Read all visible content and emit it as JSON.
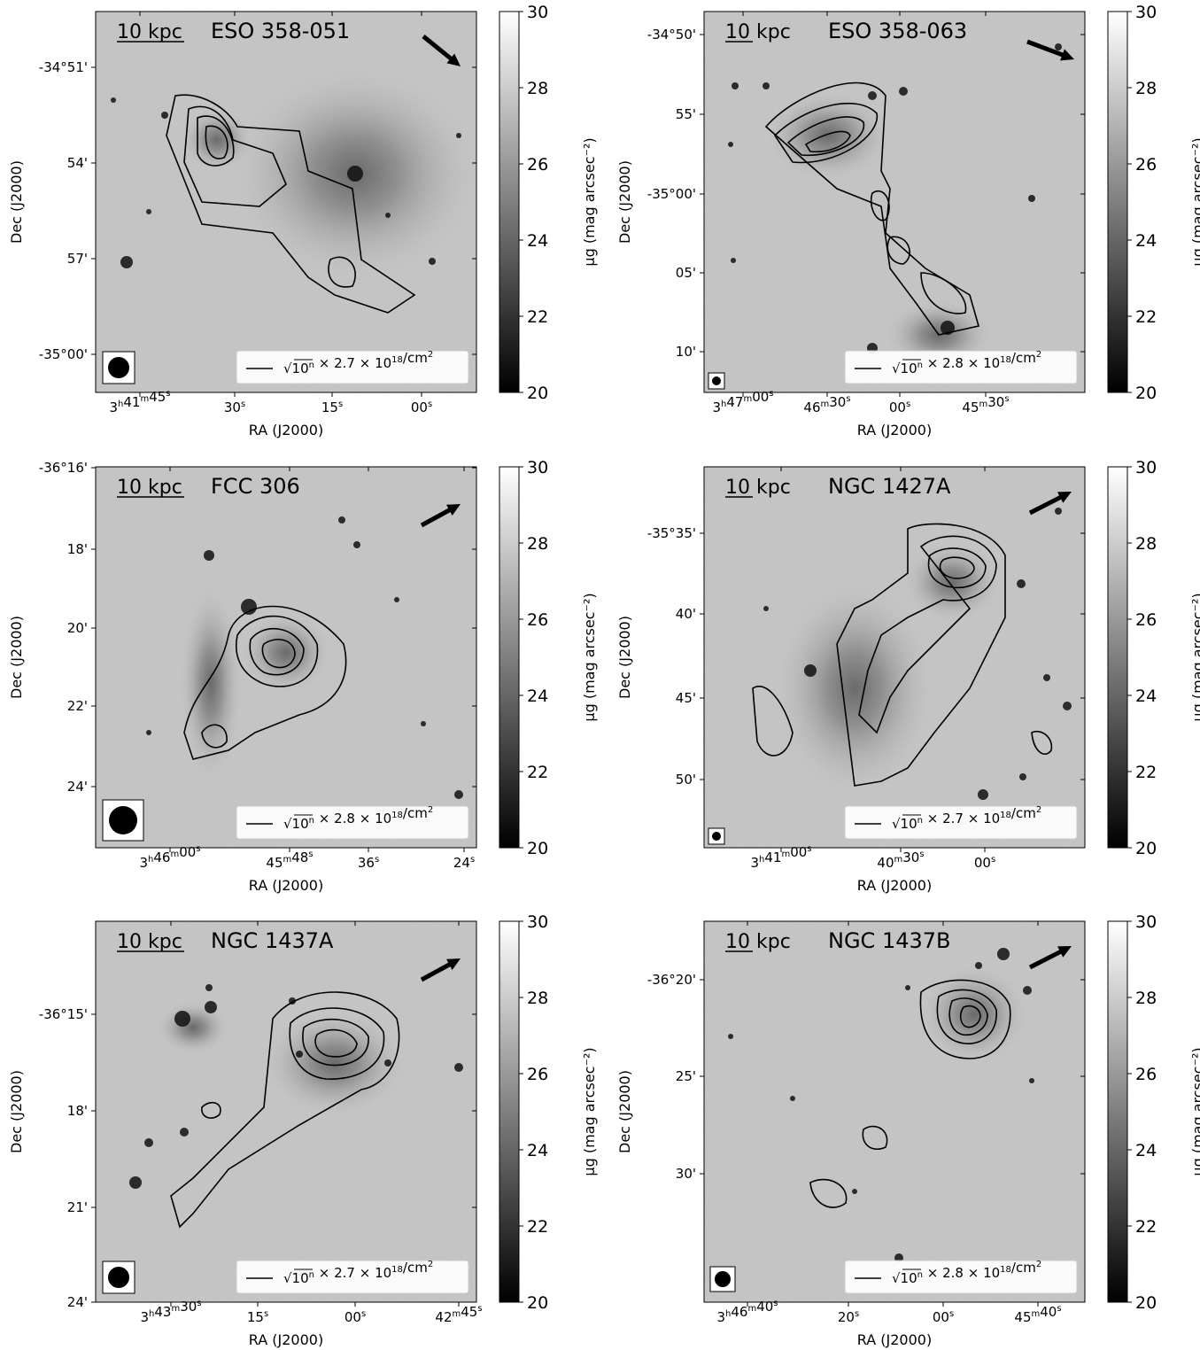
{
  "figure": {
    "scale_bar_label": "10 kpc",
    "ylabel": "Dec (J2000)",
    "xlabel": "RA (J2000)",
    "colorbar": {
      "label": "μg (mag arcsec⁻²)",
      "ticks": [
        "20",
        "22",
        "24",
        "26",
        "28",
        "30"
      ],
      "range": [
        20,
        30
      ]
    }
  },
  "panels": [
    {
      "title": "ESO 358-051",
      "legend_factor": "2.7",
      "yticks": [
        "-34°51'",
        "54'",
        "57'",
        "-35°00'"
      ],
      "xticks": [
        {
          "h": "3",
          "hs": "h",
          "m": "41",
          "ms": "m",
          "s": "45",
          "ss": "s"
        },
        {
          "s": "30",
          "ss": "s"
        },
        {
          "s": "15",
          "ss": "s"
        },
        {
          "s": "00",
          "ss": "s"
        }
      ],
      "arrow": "down-right",
      "beam": "large"
    },
    {
      "title": "ESO 358-063",
      "legend_factor": "2.8",
      "yticks": [
        "-34°50'",
        "55'",
        "-35°00'",
        "05'",
        "10'"
      ],
      "xticks": [
        {
          "h": "3",
          "hs": "h",
          "m": "47",
          "ms": "m",
          "s": "00",
          "ss": "s"
        },
        {
          "m": "46",
          "ms": "m",
          "s": "30",
          "ss": "s"
        },
        {
          "s": "00",
          "ss": "s"
        },
        {
          "m": "45",
          "ms": "m",
          "s": "30",
          "ss": "s"
        }
      ],
      "arrow": "down-right",
      "beam": "small"
    },
    {
      "title": "FCC 306",
      "legend_factor": "2.8",
      "yticks": [
        "-36°16'",
        "18'",
        "20'",
        "22'",
        "24'"
      ],
      "xticks": [
        {
          "h": "3",
          "hs": "h",
          "m": "46",
          "ms": "m",
          "s": "00",
          "ss": "s"
        },
        {
          "m": "45",
          "ms": "m",
          "s": "48",
          "ss": "s"
        },
        {
          "s": "36",
          "ss": "s"
        },
        {
          "s": "24",
          "ss": "s"
        }
      ],
      "arrow": "up-right",
      "beam": "large"
    },
    {
      "title": "NGC 1427A",
      "legend_factor": "2.7",
      "yticks": [
        "-35°35'",
        "40'",
        "45'",
        "50'"
      ],
      "xticks": [
        {
          "h": "3",
          "hs": "h",
          "m": "41",
          "ms": "m",
          "s": "00",
          "ss": "s"
        },
        {
          "m": "40",
          "ms": "m",
          "s": "30",
          "ss": "s"
        },
        {
          "s": "00",
          "ss": "s"
        }
      ],
      "arrow": "up-right",
      "beam": "small"
    },
    {
      "title": "NGC 1437A",
      "legend_factor": "2.7",
      "yticks": [
        "-36°15'",
        "18'",
        "21'",
        "24'"
      ],
      "xticks": [
        {
          "h": "3",
          "hs": "h",
          "m": "43",
          "ms": "m",
          "s": "30",
          "ss": "s"
        },
        {
          "s": "15",
          "ss": "s"
        },
        {
          "s": "00",
          "ss": "s"
        },
        {
          "m": "42",
          "ms": "m",
          "s": "45",
          "ss": "s"
        }
      ],
      "arrow": "up-right",
      "beam": "large"
    },
    {
      "title": "NGC 1437B",
      "legend_factor": "2.8",
      "yticks": [
        "-36°20'",
        "25'",
        "30'"
      ],
      "xticks": [
        {
          "h": "3",
          "hs": "h",
          "m": "46",
          "ms": "m",
          "s": "40",
          "ss": "s"
        },
        {
          "s": "20",
          "ss": "s"
        },
        {
          "s": "00",
          "ss": "s"
        },
        {
          "m": "45",
          "ms": "m",
          "s": "40",
          "ss": "s"
        }
      ],
      "arrow": "up-right",
      "beam": "medium"
    }
  ]
}
